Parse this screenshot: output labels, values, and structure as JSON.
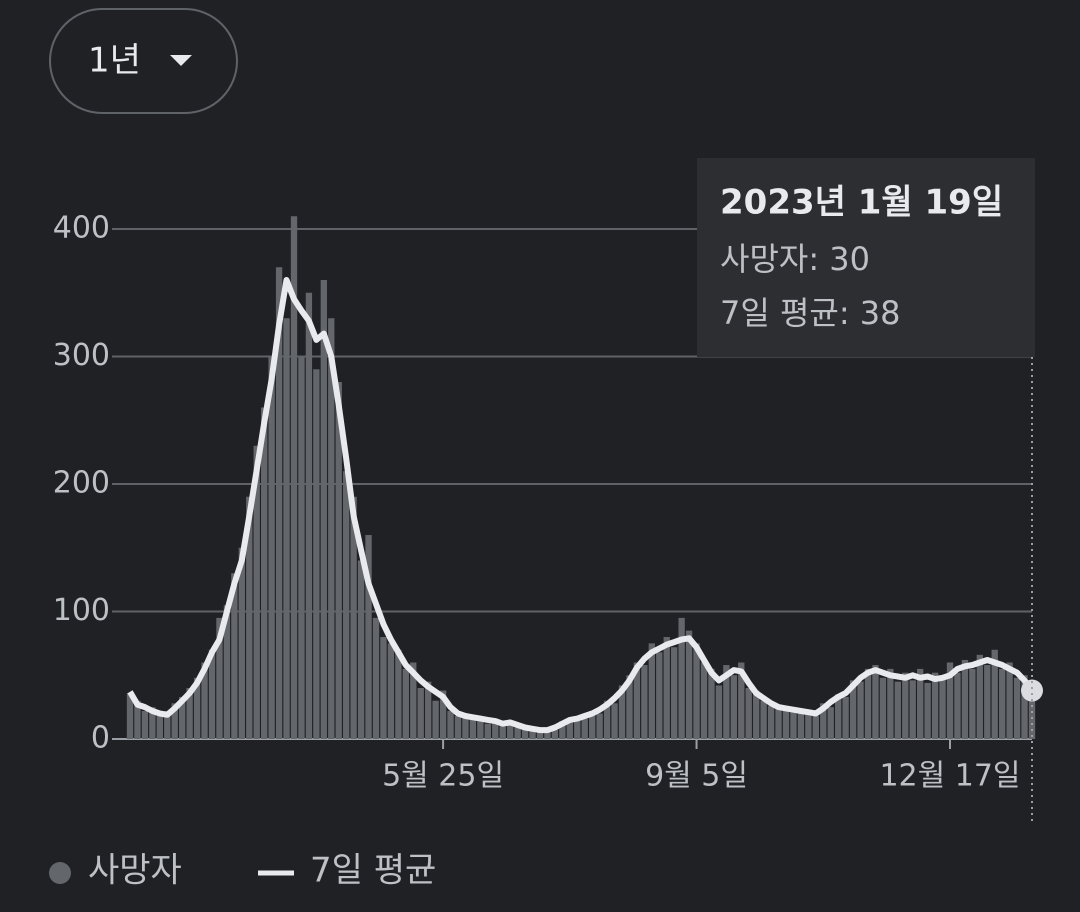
{
  "range_selector": "1년",
  "chart_data": {
    "type": "bar",
    "categories": [
      null,
      null,
      null,
      null,
      null,
      null,
      null,
      null,
      null,
      null,
      null,
      null,
      null,
      null,
      null,
      null,
      null,
      null,
      null,
      null,
      null,
      null,
      null,
      null,
      null,
      null,
      null,
      null,
      null,
      null,
      null,
      null,
      null,
      null,
      null,
      null,
      null,
      null,
      null,
      null,
      null,
      null,
      "5월 25일",
      null,
      null,
      null,
      null,
      null,
      null,
      null,
      null,
      null,
      null,
      null,
      null,
      null,
      null,
      null,
      null,
      null,
      null,
      null,
      null,
      null,
      null,
      null,
      null,
      null,
      null,
      null,
      null,
      null,
      null,
      null,
      null,
      null,
      "9월 5일",
      null,
      null,
      null,
      null,
      null,
      null,
      null,
      null,
      null,
      null,
      null,
      null,
      null,
      null,
      null,
      null,
      null,
      null,
      null,
      null,
      null,
      null,
      null,
      null,
      null,
      null,
      null,
      null,
      null,
      null,
      null,
      null,
      null,
      "12월 17일",
      null,
      null,
      null,
      null,
      null,
      null,
      null,
      null,
      null,
      null,
      null
    ],
    "series": [
      {
        "name": "사망자",
        "type": "bar",
        "color": "#63666b",
        "values": [
          36,
          30,
          22,
          25,
          18,
          22,
          28,
          33,
          40,
          48,
          60,
          70,
          95,
          105,
          130,
          150,
          190,
          230,
          260,
          300,
          370,
          330,
          410,
          300,
          350,
          290,
          360,
          330,
          280,
          210,
          190,
          140,
          160,
          95,
          80,
          75,
          70,
          55,
          60,
          40,
          45,
          30,
          38,
          22,
          18,
          20,
          15,
          18,
          12,
          16,
          10,
          14,
          9,
          10,
          7,
          8,
          6,
          10,
          14,
          13,
          18,
          16,
          22,
          20,
          30,
          28,
          42,
          50,
          60,
          58,
          75,
          68,
          80,
          72,
          95,
          85,
          75,
          60,
          55,
          42,
          58,
          50,
          60,
          40,
          38,
          30,
          26,
          27,
          22,
          25,
          20,
          23,
          18,
          28,
          25,
          35,
          33,
          46,
          45,
          55,
          58,
          48,
          55,
          45,
          52,
          46,
          55,
          44,
          52,
          47,
          60,
          52,
          62,
          55,
          66,
          58,
          70,
          55,
          60,
          48,
          50,
          30
        ]
      },
      {
        "name": "7일 평균",
        "type": "line",
        "color": "#e8eaed",
        "values": [
          37,
          27,
          25,
          22,
          20,
          19,
          24,
          30,
          36,
          44,
          55,
          68,
          78,
          100,
          122,
          140,
          175,
          211,
          248,
          282,
          325,
          360,
          345,
          336,
          328,
          313,
          318,
          300,
          262,
          220,
          175,
          148,
          122,
          106,
          90,
          78,
          68,
          58,
          52,
          46,
          41,
          37,
          33,
          25,
          20,
          18,
          17,
          16,
          15,
          14,
          12,
          13,
          11,
          9,
          8,
          7,
          7,
          9,
          12,
          15,
          16,
          18,
          20,
          23,
          27,
          32,
          38,
          46,
          56,
          63,
          68,
          71,
          74,
          76,
          78,
          79,
          72,
          62,
          52,
          46,
          50,
          54,
          53,
          44,
          36,
          32,
          28,
          25,
          24,
          23,
          22,
          21,
          20,
          24,
          29,
          33,
          36,
          42,
          48,
          52,
          54,
          52,
          50,
          49,
          48,
          50,
          48,
          49,
          47,
          48,
          50,
          55,
          57,
          58,
          60,
          62,
          60,
          58,
          55,
          52,
          46,
          38
        ]
      }
    ],
    "ylim": [
      0,
      460
    ],
    "yticks": [
      0,
      100,
      200,
      300,
      400
    ],
    "grid": true,
    "legend": "bottom",
    "tooltip": {
      "title": "2023년 1월 19일",
      "lines": [
        "사망자: 30",
        "7일 평균: 38"
      ]
    }
  }
}
